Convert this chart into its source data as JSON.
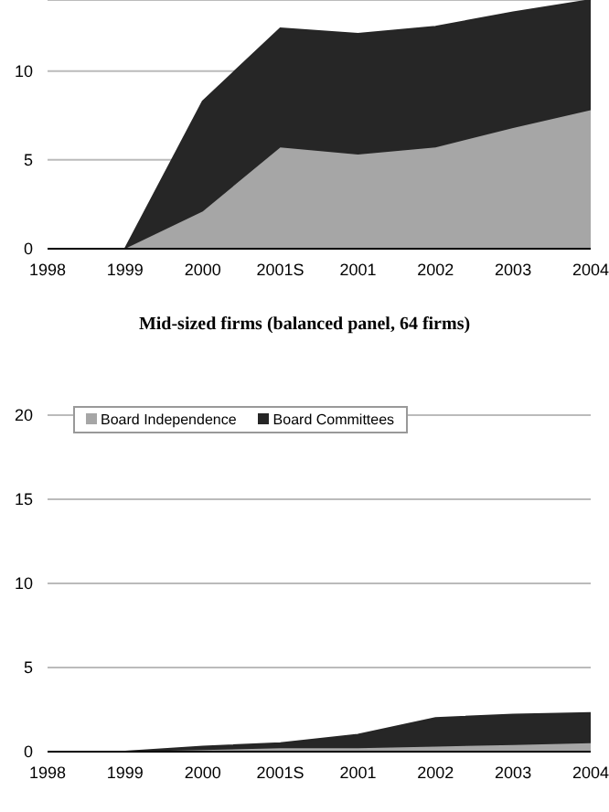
{
  "chart_data": [
    {
      "type": "area",
      "stacked": true,
      "categories": [
        "1998",
        "1999",
        "2000",
        "2001S",
        "2001",
        "2002",
        "2003",
        "2004"
      ],
      "series": [
        {
          "color": "#a6a6a6",
          "values": [
            0,
            0,
            2.1,
            5.7,
            5.3,
            5.7,
            6.8,
            7.8
          ]
        },
        {
          "color": "#262626",
          "values": [
            0,
            0,
            6.2,
            6.7,
            6.8,
            6.8,
            6.5,
            6.2
          ]
        }
      ],
      "ylim": [
        0,
        14
      ],
      "yticks": [
        0,
        5,
        10
      ],
      "grid": "y",
      "legend": false
    },
    {
      "type": "area",
      "stacked": true,
      "title": "Mid-sized firms (balanced panel, 64 firms)",
      "categories": [
        "1998",
        "1999",
        "2000",
        "2001S",
        "2001",
        "2002",
        "2003",
        "2004"
      ],
      "series": [
        {
          "name": "Board Independence",
          "color": "#a6a6a6",
          "values": [
            0,
            0,
            0.1,
            0.2,
            0.2,
            0.3,
            0.4,
            0.5
          ]
        },
        {
          "name": "Board Committees",
          "color": "#262626",
          "values": [
            0,
            0,
            0.2,
            0.3,
            0.8,
            1.7,
            1.8,
            1.8
          ]
        }
      ],
      "ylim": [
        0,
        20
      ],
      "yticks": [
        0,
        5,
        10,
        15,
        20
      ],
      "grid": "y",
      "legend": "top left"
    }
  ]
}
